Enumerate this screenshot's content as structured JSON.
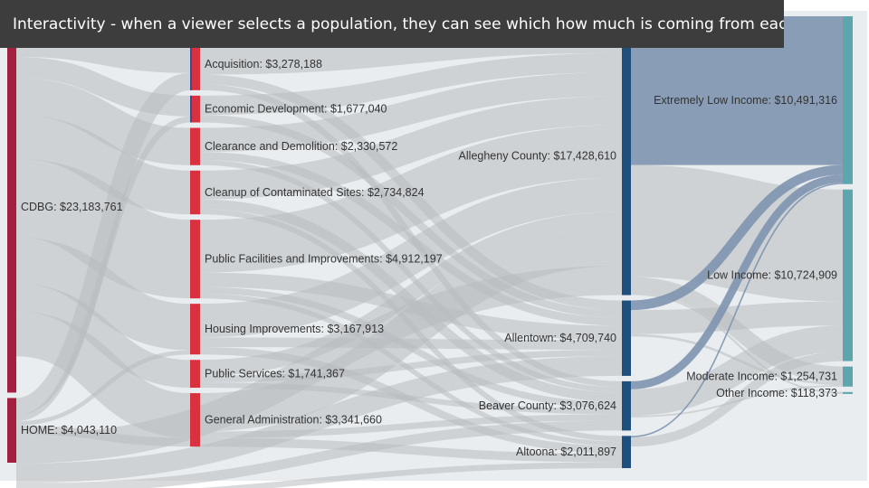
{
  "caption": "Interactivity - when a viewer selects a population, they can see which how much is coming from each town",
  "colors": {
    "background": "#e9edf0",
    "link": "#b8bcc0",
    "link_highlight": "#7f93b0",
    "source": "#a3213e",
    "category": "#d9313f",
    "category_alt": "#3b4b8f",
    "county": "#1f4f7c",
    "income": "#5ea6ae"
  },
  "chart_data": {
    "type": "sankey",
    "units": "USD",
    "columns": [
      {
        "nodes": [
          {
            "id": "cdbg",
            "label": "CDBG: $23,183,761",
            "value": 23183761
          },
          {
            "id": "home",
            "label": "HOME: $4,043,110",
            "value": 4043110
          }
        ]
      },
      {
        "nodes": [
          {
            "id": "acq",
            "label": "Acquisition: $3,278,188",
            "value": 3278188
          },
          {
            "id": "econ",
            "label": "Economic Development: $1,677,040",
            "value": 1677040
          },
          {
            "id": "clear",
            "label": "Clearance and Demolition: $2,330,572",
            "value": 2330572
          },
          {
            "id": "cleanup",
            "label": "Cleanup of Contaminated Sites: $2,734,824",
            "value": 2734824
          },
          {
            "id": "pubfac",
            "label": "Public Facilities and Improvements: $4,912,197",
            "value": 4912197
          },
          {
            "id": "housing",
            "label": "Housing Improvements: $3,167,913",
            "value": 3167913
          },
          {
            "id": "pubserv",
            "label": "Public Services: $1,741,367",
            "value": 1741367
          },
          {
            "id": "genadmin",
            "label": "General Administration: $3,341,660",
            "value": 3341660
          }
        ]
      },
      {
        "nodes": [
          {
            "id": "allegheny",
            "label": "Allegheny County: $17,428,610",
            "value": 17428610
          },
          {
            "id": "allentown",
            "label": "Allentown: $4,709,740",
            "value": 4709740
          },
          {
            "id": "beaver",
            "label": "Beaver County: $3,076,624",
            "value": 3076624
          },
          {
            "id": "altoona",
            "label": "Altoona: $2,011,897",
            "value": 2011897
          }
        ]
      },
      {
        "nodes": [
          {
            "id": "eli",
            "label": "Extremely Low Income: $10,491,316",
            "value": 10491316
          },
          {
            "id": "li",
            "label": "Low Income: $10,724,909",
            "value": 10724909
          },
          {
            "id": "mi",
            "label": "Moderate Income: $1,254,731",
            "value": 1254731
          },
          {
            "id": "oi",
            "label": "Other Income: $118,373",
            "value": 118373
          }
        ]
      }
    ],
    "links": [
      {
        "source": "cdbg",
        "target": "acq",
        "value": 2200000
      },
      {
        "source": "cdbg",
        "target": "econ",
        "value": 1300000
      },
      {
        "source": "cdbg",
        "target": "clear",
        "value": 2330572
      },
      {
        "source": "cdbg",
        "target": "cleanup",
        "value": 2734824
      },
      {
        "source": "cdbg",
        "target": "pubfac",
        "value": 4912197
      },
      {
        "source": "cdbg",
        "target": "housing",
        "value": 2900000
      },
      {
        "source": "cdbg",
        "target": "pubserv",
        "value": 1741367
      },
      {
        "source": "cdbg",
        "target": "genadmin",
        "value": 2800000
      },
      {
        "source": "home",
        "target": "acq",
        "value": 1078188
      },
      {
        "source": "home",
        "target": "econ",
        "value": 377040
      },
      {
        "source": "home",
        "target": "housing",
        "value": 267913
      },
      {
        "source": "home",
        "target": "genadmin",
        "value": 541660
      },
      {
        "source": "acq",
        "target": "allegheny",
        "value": 2300000
      },
      {
        "source": "acq",
        "target": "allentown",
        "value": 600000
      },
      {
        "source": "acq",
        "target": "beaver",
        "value": 378188
      },
      {
        "source": "econ",
        "target": "allegheny",
        "value": 1200000
      },
      {
        "source": "econ",
        "target": "allentown",
        "value": 477040
      },
      {
        "source": "clear",
        "target": "allegheny",
        "value": 1500000
      },
      {
        "source": "clear",
        "target": "allentown",
        "value": 500000
      },
      {
        "source": "clear",
        "target": "beaver",
        "value": 330572
      },
      {
        "source": "cleanup",
        "target": "allegheny",
        "value": 1800000
      },
      {
        "source": "cleanup",
        "target": "beaver",
        "value": 600000
      },
      {
        "source": "cleanup",
        "target": "altoona",
        "value": 334824
      },
      {
        "source": "pubfac",
        "target": "allegheny",
        "value": 3300000
      },
      {
        "source": "pubfac",
        "target": "allentown",
        "value": 900000
      },
      {
        "source": "pubfac",
        "target": "beaver",
        "value": 412197
      },
      {
        "source": "pubfac",
        "target": "altoona",
        "value": 300000
      },
      {
        "source": "housing",
        "target": "allegheny",
        "value": 2100000
      },
      {
        "source": "housing",
        "target": "allentown",
        "value": 600000
      },
      {
        "source": "housing",
        "target": "altoona",
        "value": 467913
      },
      {
        "source": "pubserv",
        "target": "allegheny",
        "value": 1000000
      },
      {
        "source": "pubserv",
        "target": "allentown",
        "value": 400000
      },
      {
        "source": "pubserv",
        "target": "beaver",
        "value": 341367
      },
      {
        "source": "genadmin",
        "target": "allegheny",
        "value": 2400000
      },
      {
        "source": "genadmin",
        "target": "beaver",
        "value": 400000
      },
      {
        "source": "genadmin",
        "target": "altoona",
        "value": 541660
      },
      {
        "source": "home",
        "target": "allegheny",
        "value": 1828610
      },
      {
        "source": "home",
        "target": "allentown",
        "value": 1232700
      },
      {
        "source": "home",
        "target": "beaver",
        "value": 614300
      },
      {
        "source": "home",
        "target": "altoona",
        "value": 368000
      },
      {
        "source": "allegheny",
        "target": "eli",
        "value": 9300000,
        "highlight": true
      },
      {
        "source": "allegheny",
        "target": "li",
        "value": 7000000
      },
      {
        "source": "allegheny",
        "target": "mi",
        "value": 1000000
      },
      {
        "source": "allegheny",
        "target": "oi",
        "value": 118373
      },
      {
        "source": "allentown",
        "target": "eli",
        "value": 600000,
        "highlight": true
      },
      {
        "source": "allentown",
        "target": "li",
        "value": 1500000
      },
      {
        "source": "allentown",
        "target": "mi",
        "value": 150000
      },
      {
        "source": "beaver",
        "target": "eli",
        "value": 500000,
        "highlight": true
      },
      {
        "source": "beaver",
        "target": "li",
        "value": 1650000
      },
      {
        "source": "beaver",
        "target": "mi",
        "value": 104731
      },
      {
        "source": "altoona",
        "target": "eli",
        "value": 91316,
        "highlight": true
      },
      {
        "source": "altoona",
        "target": "li",
        "value": 574909
      }
    ]
  }
}
